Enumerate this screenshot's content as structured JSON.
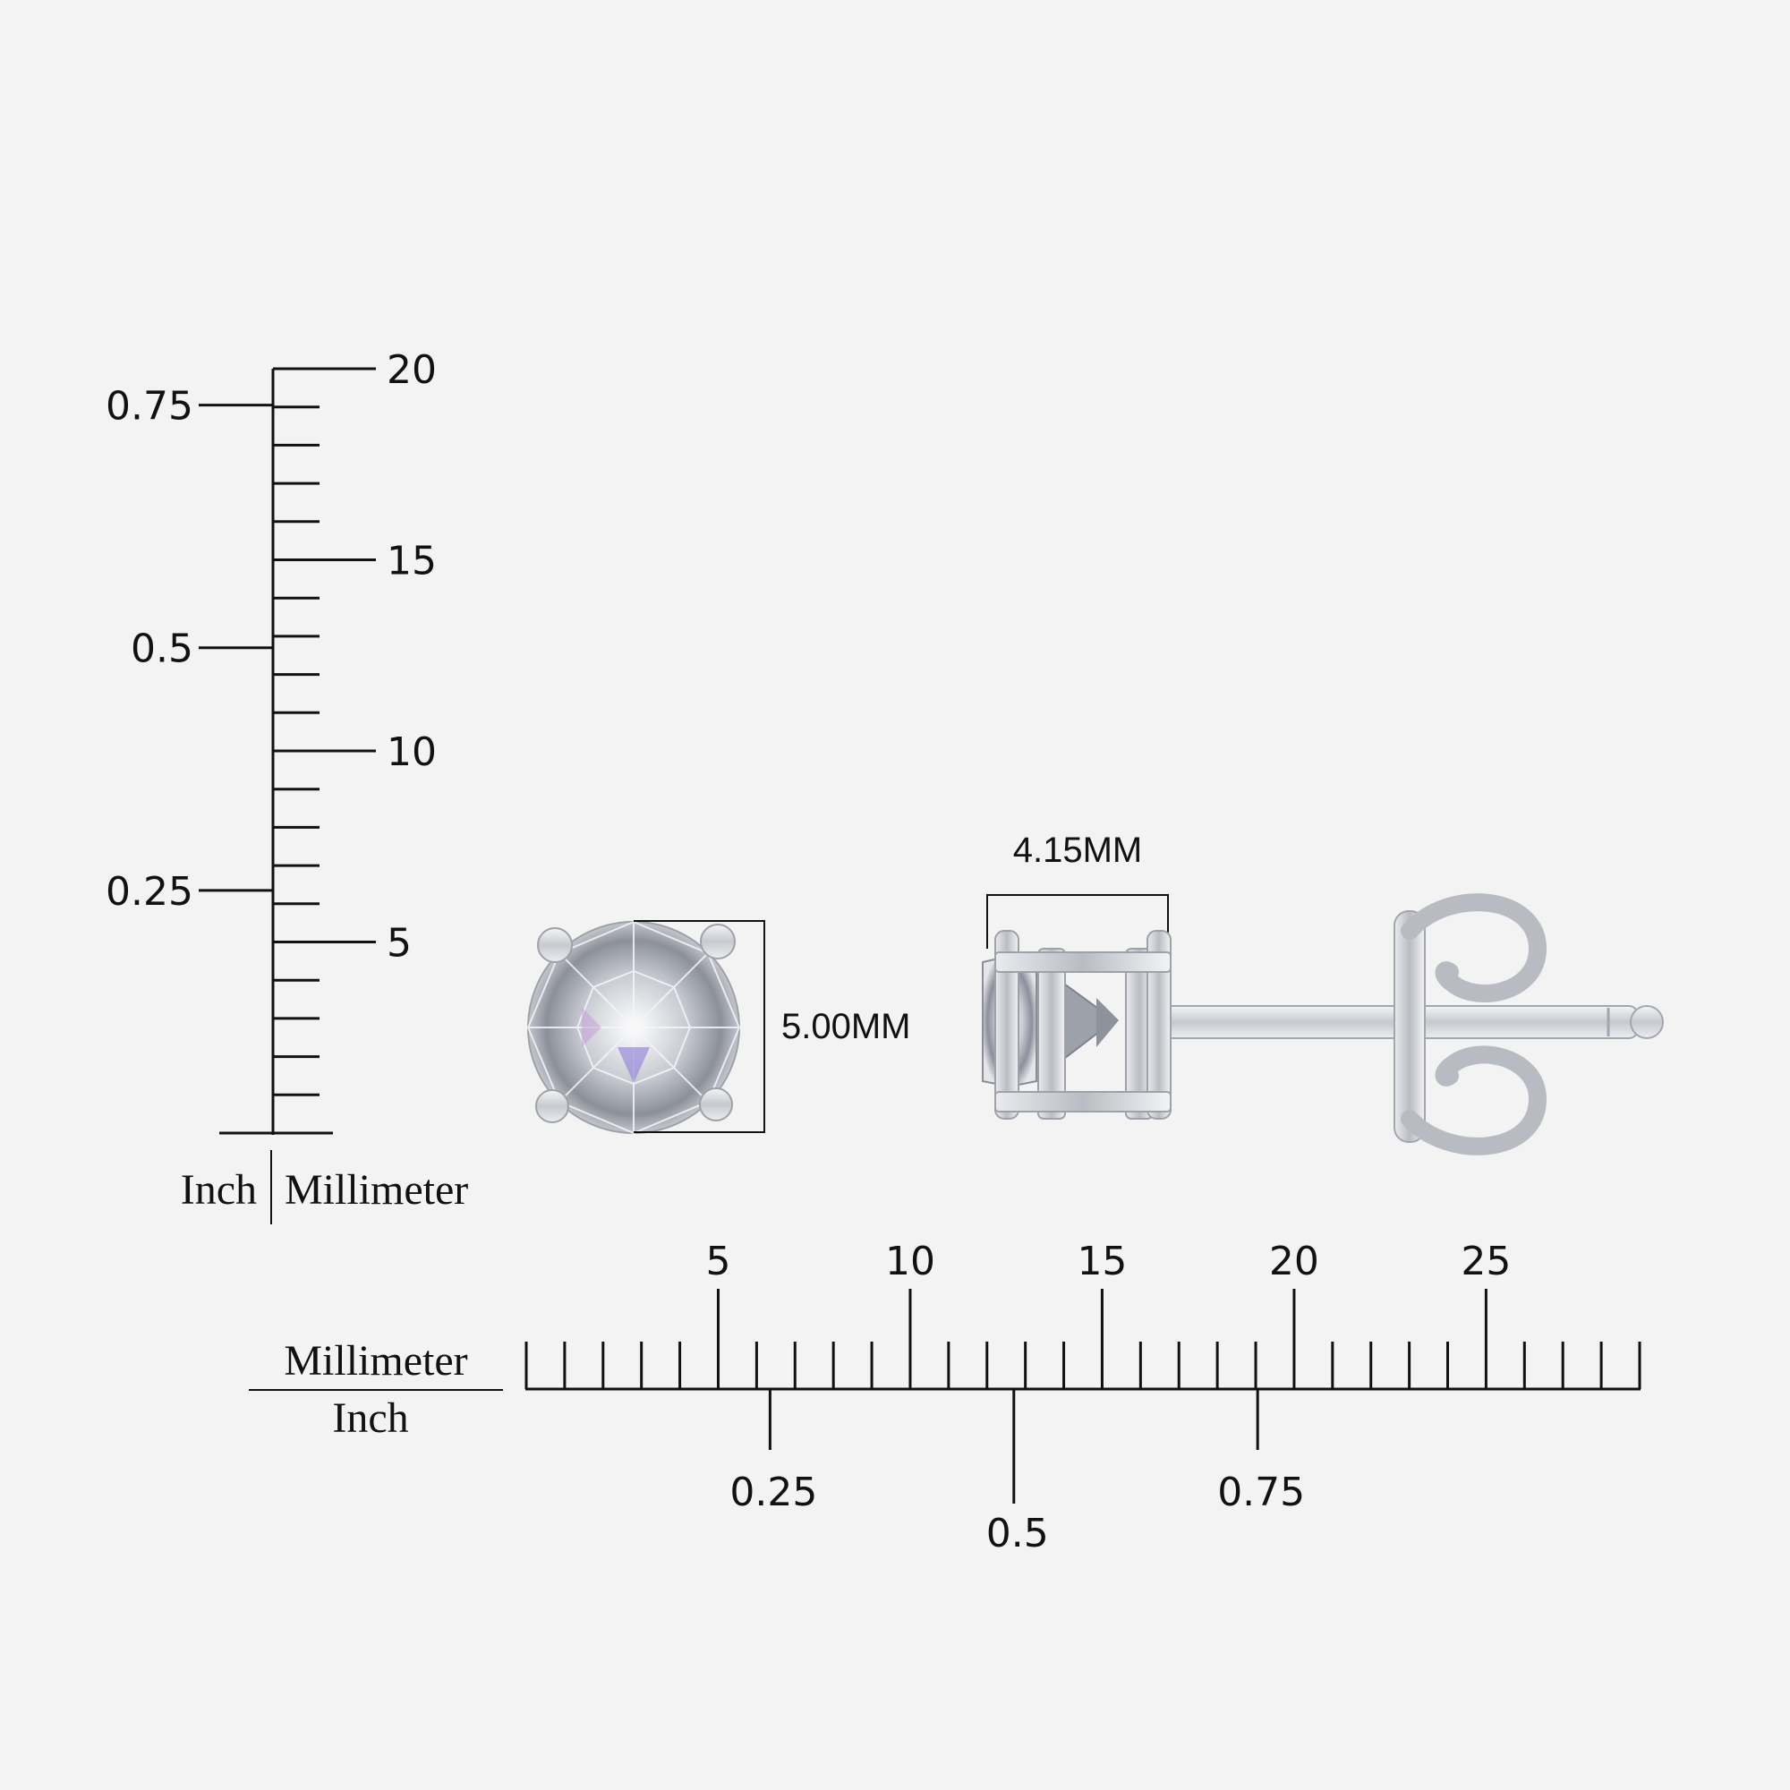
{
  "vertical_ruler": {
    "mm_labels": [
      "5",
      "10",
      "15",
      "20"
    ],
    "inch_labels": [
      "0.25",
      "0.5",
      "0.75"
    ],
    "caption_inch": "Inch",
    "caption_mm": "Millimeter"
  },
  "horizontal_ruler": {
    "mm_labels": [
      "5",
      "10",
      "15",
      "20",
      "25"
    ],
    "inch_labels": [
      "0.25",
      "0.5",
      "0.75"
    ],
    "caption_mm": "Millimeter",
    "caption_inch": "Inch"
  },
  "front_view": {
    "dimension_label": "5.00MM"
  },
  "side_view": {
    "dimension_label": "4.15MM"
  },
  "colors": {
    "background": "#f3f3f3",
    "ink": "#111111",
    "metal": "#d9dbde",
    "metal_shadow": "#a9adb3"
  }
}
